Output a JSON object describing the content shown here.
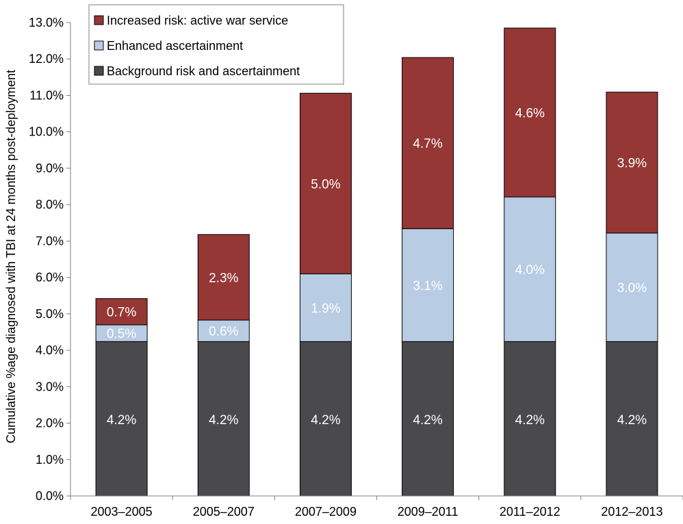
{
  "chart_data": {
    "type": "bar",
    "stacked": true,
    "title": "",
    "xlabel": "",
    "ylabel": "Cumulative %age diagnosed with TBI at 24 months post-deployment",
    "ylim": [
      0,
      13
    ],
    "y_ticks": [
      0,
      1,
      2,
      3,
      4,
      5,
      6,
      7,
      8,
      9,
      10,
      11,
      12,
      13
    ],
    "y_tick_labels": [
      "0.0%",
      "1.0%",
      "2.0%",
      "3.0%",
      "4.0%",
      "5.0%",
      "6.0%",
      "7.0%",
      "8.0%",
      "9.0%",
      "10.0%",
      "11.0%",
      "12.0%",
      "13.0%"
    ],
    "grid": false,
    "legend_position": "top-left",
    "categories": [
      "2003–2005",
      "2005–2007",
      "2007–2009",
      "2009–2011",
      "2011–2012",
      "2012–2013"
    ],
    "series": [
      {
        "name": "Background risk and ascertainment",
        "color": "#4a4a4c",
        "values": [
          4.24,
          4.24,
          4.24,
          4.24,
          4.24,
          4.24
        ],
        "labels": [
          "4.2%",
          "4.2%",
          "4.2%",
          "4.2%",
          "4.2%",
          "4.2%"
        ]
      },
      {
        "name": "Enhanced ascertainment",
        "color": "#b8cce4",
        "values": [
          0.46,
          0.59,
          1.86,
          3.1,
          3.97,
          2.98
        ],
        "labels": [
          "0.5%",
          "0.6%",
          "1.9%",
          "3.1%",
          "4.0%",
          "3.0%"
        ]
      },
      {
        "name": "Increased risk: active war service",
        "color": "#953735",
        "values": [
          0.72,
          2.35,
          4.96,
          4.7,
          4.64,
          3.87
        ],
        "labels": [
          "0.7%",
          "2.3%",
          "5.0%",
          "4.7%",
          "4.6%",
          "3.9%"
        ]
      }
    ],
    "legend_order": [
      "Increased risk: active war service",
      "Enhanced ascertainment",
      "Background risk and ascertainment"
    ],
    "axis_color": "#7f7f7f",
    "text_color": "#000000",
    "bar_label_color": "#ffffff"
  }
}
